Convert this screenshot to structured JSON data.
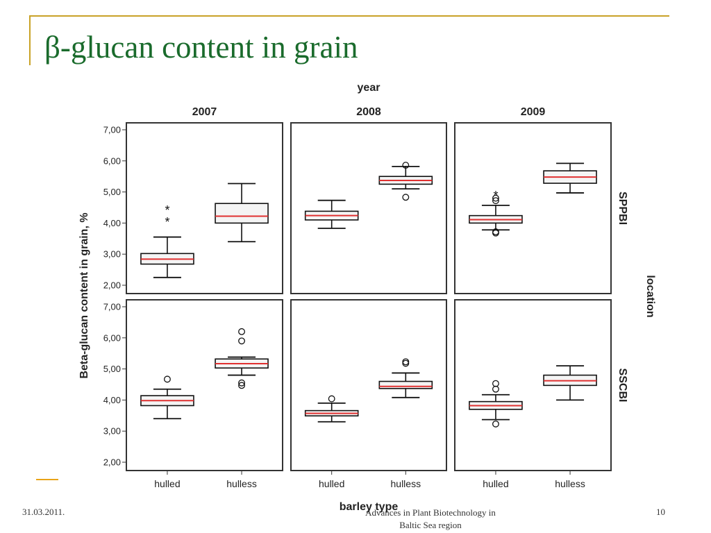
{
  "slide": {
    "title": "β-glucan content in grain",
    "footer_date": "31.03.2011.",
    "footer_conference_line1": "Advances in Plant Biotechnology in",
    "footer_conference_line2": "Baltic Sea region",
    "page_number": "10",
    "title_color": "#1a6b2c",
    "accent_color": "#c9a227"
  },
  "chart_data": {
    "type": "boxplot",
    "title": "",
    "column_facet_label": "year",
    "row_facet_label": "location",
    "xlabel": "barley type",
    "ylabel": "Beta-glucan content in grain, %",
    "ylim": [
      2,
      7
    ],
    "yticks": [
      "2,00",
      "3,00",
      "4,00",
      "5,00",
      "6,00",
      "7,00"
    ],
    "categories": [
      "hulled",
      "hulless"
    ],
    "years": [
      "2007",
      "2008",
      "2009"
    ],
    "locations": [
      "SPPBI",
      "SSCBI"
    ],
    "median_color": "#e03030",
    "panels": [
      {
        "year": "2007",
        "location": "SPPBI",
        "boxes": [
          {
            "category": "hulled",
            "whisker_low": 2.25,
            "q1": 2.68,
            "median": 2.84,
            "q3": 3.02,
            "whisker_high": 3.55,
            "outliers": [],
            "extremes": [
              4.08,
              4.45
            ]
          },
          {
            "category": "hulless",
            "whisker_low": 3.4,
            "q1": 4.0,
            "median": 4.22,
            "q3": 4.63,
            "whisker_high": 5.27,
            "outliers": [],
            "extremes": []
          }
        ]
      },
      {
        "year": "2008",
        "location": "SPPBI",
        "boxes": [
          {
            "category": "hulled",
            "whisker_low": 3.83,
            "q1": 4.1,
            "median": 4.24,
            "q3": 4.38,
            "whisker_high": 4.73,
            "outliers": [],
            "extremes": []
          },
          {
            "category": "hulless",
            "whisker_low": 5.1,
            "q1": 5.25,
            "median": 5.37,
            "q3": 5.5,
            "whisker_high": 5.82,
            "outliers": [
              4.83,
              5.86
            ],
            "extremes": []
          }
        ]
      },
      {
        "year": "2009",
        "location": "SPPBI",
        "boxes": [
          {
            "category": "hulled",
            "whisker_low": 3.78,
            "q1": 4.0,
            "median": 4.11,
            "q3": 4.24,
            "whisker_high": 4.57,
            "outliers": [
              3.68,
              3.72,
              4.72,
              4.8
            ],
            "extremes": [
              4.92
            ]
          },
          {
            "category": "hulless",
            "whisker_low": 4.97,
            "q1": 5.28,
            "median": 5.48,
            "q3": 5.68,
            "whisker_high": 5.92,
            "outliers": [],
            "extremes": []
          }
        ]
      },
      {
        "year": "2007",
        "location": "SSCBI",
        "boxes": [
          {
            "category": "hulled",
            "whisker_low": 3.4,
            "q1": 3.82,
            "median": 3.98,
            "q3": 4.14,
            "whisker_high": 4.35,
            "outliers": [
              4.67
            ],
            "extremes": []
          },
          {
            "category": "hulless",
            "whisker_low": 4.8,
            "q1": 5.03,
            "median": 5.17,
            "q3": 5.32,
            "whisker_high": 5.38,
            "outliers": [
              4.47,
              4.55,
              5.9,
              6.2
            ],
            "extremes": []
          }
        ]
      },
      {
        "year": "2008",
        "location": "SSCBI",
        "boxes": [
          {
            "category": "hulled",
            "whisker_low": 3.3,
            "q1": 3.49,
            "median": 3.57,
            "q3": 3.66,
            "whisker_high": 3.9,
            "outliers": [
              4.04
            ],
            "extremes": []
          },
          {
            "category": "hulless",
            "whisker_low": 4.08,
            "q1": 4.37,
            "median": 4.44,
            "q3": 4.6,
            "whisker_high": 4.87,
            "outliers": [
              5.18,
              5.23
            ],
            "extremes": []
          }
        ]
      },
      {
        "year": "2009",
        "location": "SSCBI",
        "boxes": [
          {
            "category": "hulled",
            "whisker_low": 3.37,
            "q1": 3.7,
            "median": 3.82,
            "q3": 3.95,
            "whisker_high": 4.17,
            "outliers": [
              3.23,
              4.35,
              4.53
            ],
            "extremes": []
          },
          {
            "category": "hulless",
            "whisker_low": 4.0,
            "q1": 4.47,
            "median": 4.62,
            "q3": 4.8,
            "whisker_high": 5.1,
            "outliers": [],
            "extremes": []
          }
        ]
      }
    ]
  }
}
